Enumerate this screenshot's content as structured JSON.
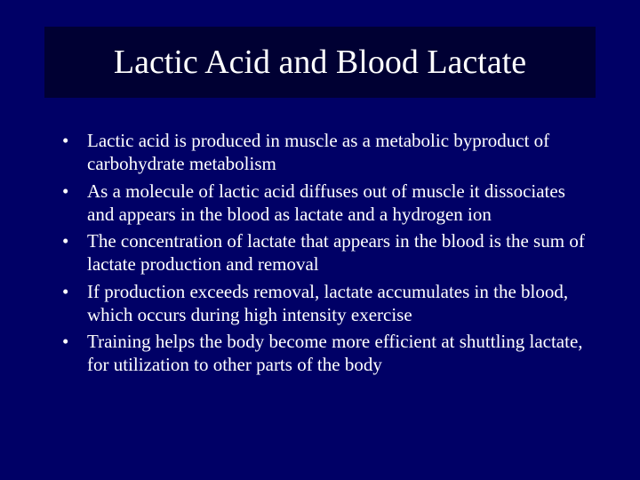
{
  "slide": {
    "background_color": "#000066",
    "title_box_color": "#000033",
    "text_color": "#ffffff",
    "font_family": "Times New Roman",
    "title": "Lactic Acid and Blood Lactate",
    "title_fontsize": 38,
    "bullet_fontsize": 21,
    "bullets": [
      "Lactic acid is produced in muscle as a metabolic byproduct of carbohydrate metabolism",
      "As a molecule of lactic acid diffuses out of muscle it dissociates and appears in the blood as lactate and a hydrogen ion",
      "The concentration of lactate that appears in the blood is the sum of lactate production and removal",
      "If production exceeds removal, lactate accumulates in the blood, which occurs during high intensity exercise",
      "Training helps the body become more efficient at shuttling lactate, for utilization to other parts of the body"
    ]
  }
}
